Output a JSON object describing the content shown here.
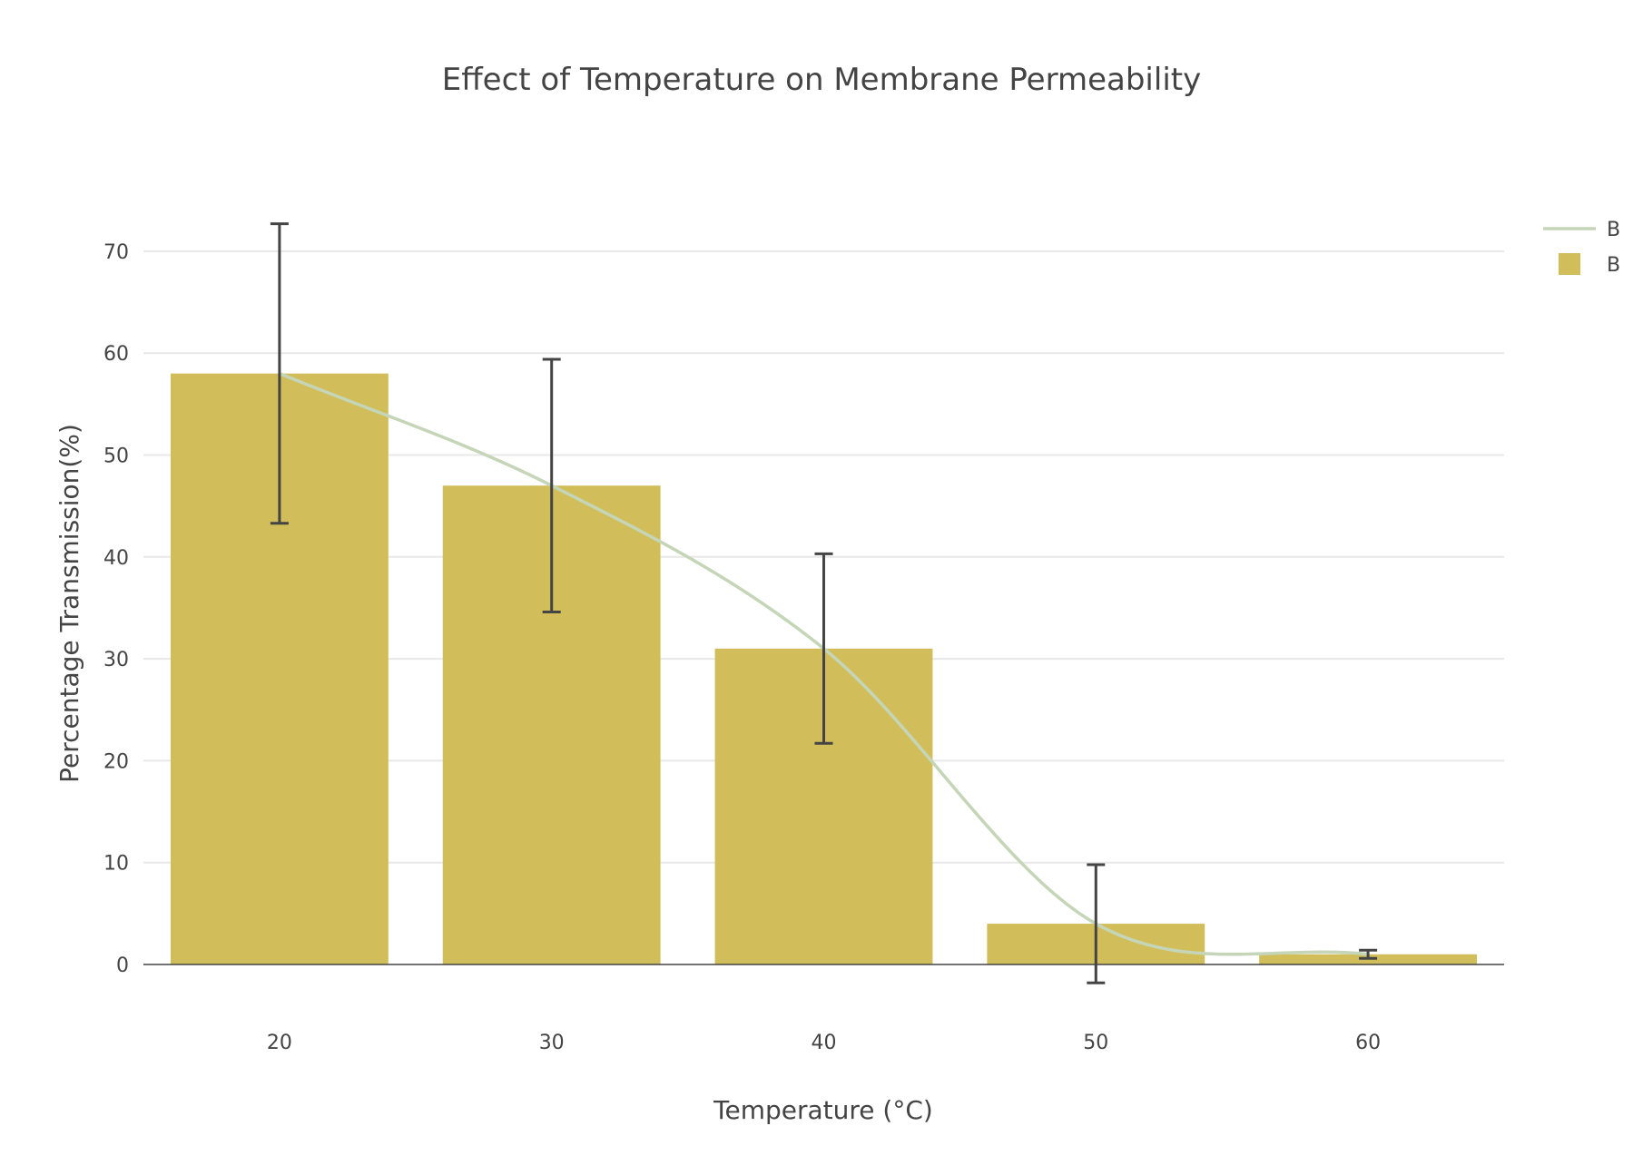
{
  "chart_data": {
    "type": "bar",
    "title": "Effect of Temperature on Membrane Permeability",
    "xlabel": "Temperature (°C)",
    "ylabel": "Percentage Transmission(%)",
    "categories": [
      "20",
      "30",
      "40",
      "50",
      "60"
    ],
    "x": [
      20,
      30,
      40,
      50,
      60
    ],
    "series": [
      {
        "name": "B",
        "kind": "line",
        "smoothed": true,
        "color": "#c5d5b8",
        "values": [
          58,
          47,
          31,
          4,
          1
        ]
      },
      {
        "name": "B",
        "kind": "bar",
        "color": "#d1be5a",
        "values": [
          58,
          47,
          31,
          4,
          1
        ],
        "error_upper": [
          72.7,
          59.4,
          40.3,
          9.8,
          1.4
        ],
        "error_lower": [
          43.3,
          34.6,
          21.7,
          -1.8,
          0.6
        ]
      }
    ],
    "error_bar_color": "#444444",
    "ylim": [
      -3,
      76
    ],
    "yticks": [
      0,
      10,
      20,
      30,
      40,
      50,
      60,
      70
    ],
    "grid": true,
    "legend_position": "top-right"
  }
}
